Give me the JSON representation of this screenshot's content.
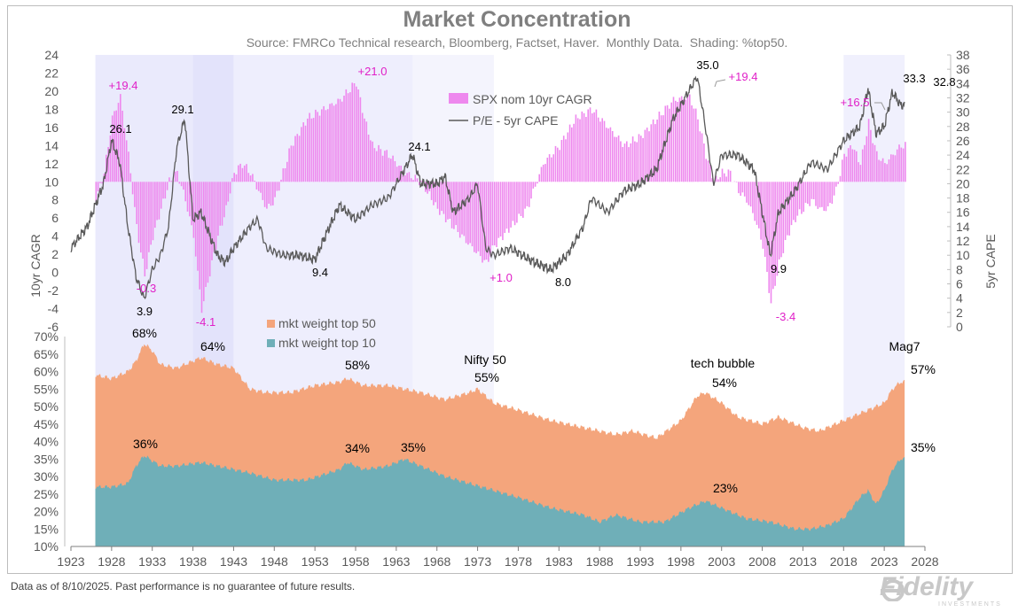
{
  "chart_data": {
    "type": "area",
    "title": "Market Concentration",
    "subtitle": "Source: FMRCo Technical research, Bloomberg, Factset, Haver.  Monthly Data.  Shading: %top50.",
    "x_ticks": [
      1923,
      1928,
      1933,
      1938,
      1943,
      1948,
      1953,
      1958,
      1963,
      1968,
      1973,
      1978,
      1983,
      1988,
      1993,
      1998,
      2003,
      2008,
      2013,
      2018,
      2023,
      2028
    ],
    "xlim": [
      1923,
      2028
    ],
    "top_panel": {
      "left_axis": {
        "label": "10yr CAGR",
        "ylim": [
          -6,
          24
        ],
        "ticks": [
          -6,
          -4,
          -2,
          0,
          2,
          4,
          6,
          8,
          10,
          12,
          14,
          16,
          18,
          20,
          22,
          24
        ]
      },
      "right_axis": {
        "label": "5yr CAPE",
        "ylim": [
          0,
          38
        ],
        "ticks": [
          0,
          2,
          4,
          6,
          8,
          10,
          12,
          14,
          16,
          18,
          20,
          22,
          24,
          26,
          28,
          30,
          32,
          34,
          36,
          38
        ]
      },
      "legend": [
        "SPX nom 10yr CAGR",
        "P/E - 5yr CAPE"
      ],
      "series": [
        {
          "name": "SPX nom 10yr CAGR",
          "axis": "left",
          "baseline": 10,
          "color": "#ee88ee",
          "x": [
            1926,
            1927,
            1928,
            1929,
            1930,
            1931,
            1932,
            1933,
            1934,
            1935,
            1936,
            1937,
            1938,
            1939,
            1940,
            1941,
            1942,
            1943,
            1944,
            1945,
            1946,
            1947,
            1948,
            1950,
            1952,
            1954,
            1956,
            1958,
            1959,
            1960,
            1962,
            1964,
            1966,
            1968,
            1970,
            1972,
            1974,
            1975,
            1977,
            1979,
            1981,
            1983,
            1985,
            1987,
            1989,
            1991,
            1993,
            1995,
            1997,
            1999,
            2000,
            2001,
            2002,
            2003,
            2004,
            2005,
            2006,
            2007,
            2008,
            2009,
            2010,
            2011,
            2012,
            2013,
            2014,
            2015,
            2016,
            2017,
            2018,
            2019,
            2020,
            2021,
            2022,
            2023,
            2024,
            2025
          ],
          "y": [
            8,
            11,
            17,
            19.4,
            13,
            5,
            -0.3,
            4,
            7,
            10,
            11,
            8,
            4,
            -4.1,
            0,
            4,
            7,
            11,
            12,
            11,
            9,
            7,
            8,
            14,
            17,
            18,
            19,
            21,
            17,
            14,
            13,
            11,
            10,
            7,
            5,
            3,
            1,
            3,
            5,
            7,
            12,
            14,
            17,
            18,
            16,
            14,
            15,
            17,
            19,
            19.4,
            17,
            13,
            10,
            11,
            11,
            9,
            8,
            6,
            3,
            -3.4,
            1,
            4,
            6,
            7,
            8,
            7,
            7,
            9,
            13,
            14,
            12,
            16.5,
            13,
            12,
            13,
            14
          ]
        },
        {
          "name": "P/E - 5yr CAPE",
          "axis": "right",
          "color": "#595959",
          "x": [
            1923,
            1925,
            1927,
            1928,
            1929,
            1930,
            1931,
            1932,
            1933,
            1934,
            1935,
            1936,
            1937,
            1938,
            1939,
            1940,
            1941,
            1942,
            1943,
            1945,
            1946,
            1947,
            1949,
            1951,
            1953,
            1954,
            1956,
            1958,
            1960,
            1962,
            1964,
            1965,
            1966,
            1968,
            1969,
            1970,
            1972,
            1973,
            1974,
            1975,
            1977,
            1980,
            1982,
            1984,
            1986,
            1987,
            1989,
            1991,
            1993,
            1995,
            1997,
            1999,
            2000,
            2001,
            2002,
            2003,
            2005,
            2007,
            2008,
            2009,
            2010,
            2012,
            2014,
            2016,
            2018,
            2019,
            2020,
            2021,
            2022,
            2023,
            2024,
            2025
          ],
          "y": [
            11,
            14,
            20,
            26.1,
            23,
            14,
            7,
            3.9,
            8,
            10,
            14,
            25,
            29.1,
            15,
            16,
            13,
            10,
            9,
            11,
            14,
            15,
            11,
            10,
            10,
            9.4,
            12,
            17,
            15,
            17,
            18,
            22,
            24.1,
            20,
            20,
            21,
            16,
            18,
            20,
            11,
            10,
            11,
            9,
            8.0,
            10,
            14,
            18,
            16,
            19,
            20,
            22,
            29,
            33,
            35.0,
            28,
            20,
            24,
            24,
            22,
            16,
            9.9,
            16,
            19,
            23,
            22,
            26,
            27,
            28,
            33.3,
            27,
            28,
            32.8,
            31
          ]
        }
      ],
      "annotations_cagr": [
        "+19.4",
        "-0.3",
        "-4.1",
        "+21.0",
        "+1.0",
        "+19.4",
        "-3.4",
        "+16.5"
      ],
      "annotations_cape": [
        "26.1",
        "3.9",
        "29.1",
        "9.4",
        "24.1",
        "8.0",
        "35.0",
        "9.9",
        "33.3",
        "32.8"
      ]
    },
    "bottom_panel": {
      "ylim": [
        10,
        70
      ],
      "ticks": [
        "10%",
        "15%",
        "20%",
        "25%",
        "30%",
        "35%",
        "40%",
        "45%",
        "50%",
        "55%",
        "60%",
        "65%",
        "70%"
      ],
      "legend": [
        "mkt weight top 50",
        "mkt weight top 10"
      ],
      "series": [
        {
          "name": "mkt weight top 50",
          "color": "#f4a57c",
          "x": [
            1926,
            1928,
            1930,
            1931,
            1932,
            1933,
            1934,
            1936,
            1938,
            1939,
            1941,
            1943,
            1945,
            1947,
            1950,
            1953,
            1956,
            1957,
            1959,
            1962,
            1964,
            1966,
            1969,
            1972,
            1973,
            1975,
            1978,
            1982,
            1986,
            1988,
            1990,
            1992,
            1995,
            1998,
            2000,
            2001,
            2003,
            2005,
            2008,
            2010,
            2013,
            2015,
            2017,
            2019,
            2021,
            2022,
            2023,
            2024,
            2025
          ],
          "y": [
            59,
            58,
            60,
            63,
            68,
            66,
            62,
            61,
            63,
            64,
            62,
            61,
            55,
            54,
            54,
            56,
            57,
            58,
            56,
            56,
            55,
            54,
            52,
            54,
            55,
            51,
            49,
            46,
            44,
            43,
            42,
            43,
            41,
            46,
            53,
            54,
            51,
            47,
            45,
            47,
            44,
            43,
            45,
            47,
            49,
            50,
            51,
            55,
            57
          ]
        },
        {
          "name": "mkt weight top 10",
          "color": "#6fafb8",
          "x": [
            1926,
            1928,
            1930,
            1931,
            1932,
            1934,
            1936,
            1939,
            1941,
            1943,
            1945,
            1948,
            1952,
            1956,
            1957,
            1959,
            1962,
            1964,
            1966,
            1969,
            1972,
            1975,
            1978,
            1982,
            1986,
            1988,
            1990,
            1993,
            1996,
            1999,
            2001,
            2003,
            2006,
            2009,
            2012,
            2014,
            2016,
            2018,
            2020,
            2021,
            2022,
            2023,
            2024,
            2025
          ],
          "y": [
            27,
            27,
            28,
            33,
            36,
            33,
            33,
            34,
            33,
            32,
            31,
            29,
            29,
            32,
            34,
            32,
            33,
            35,
            33,
            30,
            28,
            26,
            24,
            21,
            19,
            17,
            19,
            17,
            17,
            21,
            23,
            21,
            18,
            17,
            15,
            15,
            16,
            18,
            24,
            26,
            22,
            26,
            32,
            35
          ]
        }
      ],
      "annotations": [
        "68%",
        "36%",
        "64%",
        "58%",
        "34%",
        "35%",
        "Nifty 50",
        "55%",
        "tech bubble",
        "54%",
        "23%",
        "Mag7",
        "57%",
        "35%"
      ]
    },
    "shading_bands": [
      [
        1926,
        1938
      ],
      [
        1938,
        1943
      ],
      [
        1943,
        1965
      ],
      [
        1965,
        1975
      ],
      [
        2018,
        2025.5
      ]
    ]
  },
  "footnote": "Data as of 8/10/2025. Past performance is no guarantee of future results.",
  "brand": {
    "name": "Fidelity",
    "sub": "INVESTMENTS"
  },
  "colors": {
    "cagr": "#ee88ee",
    "cape": "#595959",
    "top50": "#f4a57c",
    "top10": "#6fafb8",
    "label_magenta": "#e020c8",
    "shade": "#d9d9fa"
  }
}
